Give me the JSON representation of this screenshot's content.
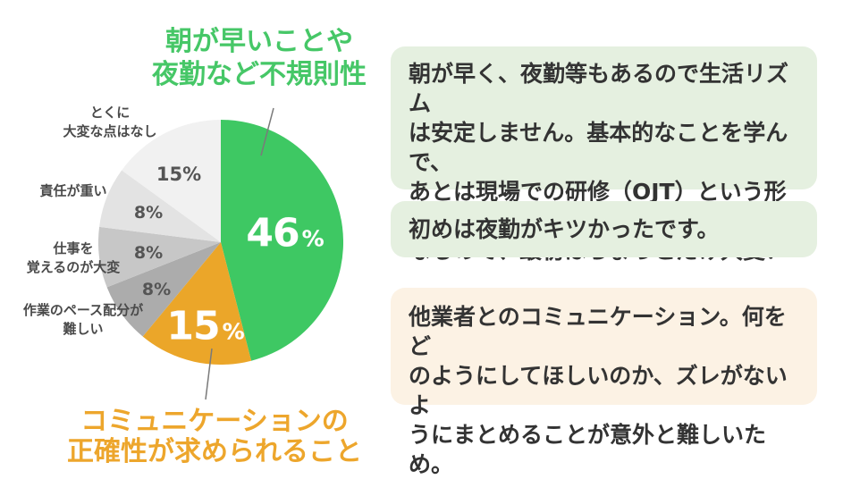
{
  "chart_data": {
    "type": "pie",
    "direction": "clockwise",
    "start_angle_deg": 0,
    "legend_position": "around",
    "slices": [
      {
        "label": "朝が早いことや夜勤など不規則性",
        "value": 46,
        "color": "#3ec863"
      },
      {
        "label": "コミュニケーションの正確性が求められること",
        "value": 15,
        "color": "#eba629"
      },
      {
        "label": "作業のペース配分が難しい",
        "value": 8,
        "color": "#acacac"
      },
      {
        "label": "仕事を覚えるのが大変",
        "value": 8,
        "color": "#c7c7c7"
      },
      {
        "label": "責任が重い",
        "value": 8,
        "color": "#e3e3e3"
      },
      {
        "label": "とくに大変な点はなし",
        "value": 15,
        "color": "#f1f1f1"
      }
    ]
  },
  "callouts": {
    "green_title": "朝が早いことや\n夜勤など不規則性",
    "orange_title": "コミュニケーションの\n正確性が求められること",
    "green_pct_num": "46",
    "green_pct_sym": "%",
    "orange_pct_num": "15",
    "orange_pct_sym": "%",
    "labels": [
      {
        "text": "とくに\n大変な点はなし",
        "pct": "15%"
      },
      {
        "text": "責任が重い",
        "pct": "8%"
      },
      {
        "text": "仕事を\n覚えるのが大変",
        "pct": "8%"
      },
      {
        "text": "作業のペース配分が\n難しい",
        "pct": "8%"
      }
    ]
  },
  "comments": [
    {
      "text": "朝が早く、夜勤等もあるので生活リズム\nは安定しません。基本的なことを学んで、\nあとは現場での研修（OJT）という形に\nなるので、最初はちょっとだけ大変！"
    },
    {
      "text": "初めは夜勤がキツかったです。"
    },
    {
      "text": "他業者とのコミュニケーション。何をど\nのようにしてほしいのか、ズレがないよ\nうにまとめることが意外と難しいため。"
    }
  ],
  "colors": {
    "green": "#3ec863",
    "green_title": "#46c767",
    "orange": "#eba629",
    "orange_title": "#eda62c",
    "gray_dark": "#acacac",
    "gray_mid": "#c7c7c7",
    "gray_light": "#e3e3e3",
    "gray_lightest": "#f1f1f1",
    "comment_green_bg": "#e5f0e0",
    "comment_cream_bg": "#fcf2e4",
    "text_dark": "#333333"
  }
}
